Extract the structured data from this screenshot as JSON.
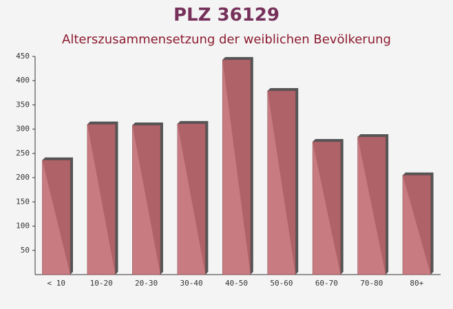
{
  "chart_data": {
    "type": "bar",
    "title": "PLZ 36129",
    "subtitle": "Alterszusammensetzung der weiblichen Bevölkerung",
    "categories": [
      "< 10",
      "10-20",
      "20-30",
      "30-40",
      "40-50",
      "50-60",
      "60-70",
      "70-80",
      "80+"
    ],
    "values": [
      236,
      310,
      308,
      311,
      443,
      379,
      274,
      284,
      205
    ],
    "color": "#c0666d",
    "ylim": [
      0,
      450
    ],
    "yticks": [
      50,
      100,
      150,
      200,
      250,
      300,
      350,
      400,
      450
    ]
  }
}
